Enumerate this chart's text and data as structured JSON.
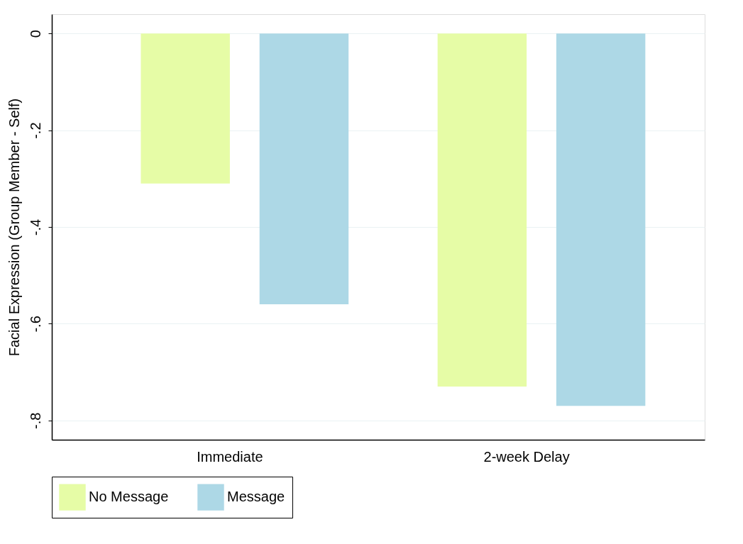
{
  "chart_data": {
    "type": "bar",
    "ylabel": "Facial Expression (Group Member - Self)",
    "categories": [
      "Immediate",
      "2-week Delay"
    ],
    "series": [
      {
        "name": "No Message",
        "color": "#e6fca6",
        "values": [
          -0.31,
          -0.73
        ]
      },
      {
        "name": "Message",
        "color": "#add8e6",
        "values": [
          -0.56,
          -0.77
        ]
      }
    ],
    "ylim": [
      -0.84,
      0.04
    ],
    "yticks": [
      {
        "value": 0,
        "label": "0"
      },
      {
        "value": -0.2,
        "label": "-.2"
      },
      {
        "value": -0.4,
        "label": "-.4"
      },
      {
        "value": -0.6,
        "label": "-.6"
      },
      {
        "value": -0.8,
        "label": "-.8"
      }
    ],
    "grid": "y",
    "legend": "bottom"
  }
}
